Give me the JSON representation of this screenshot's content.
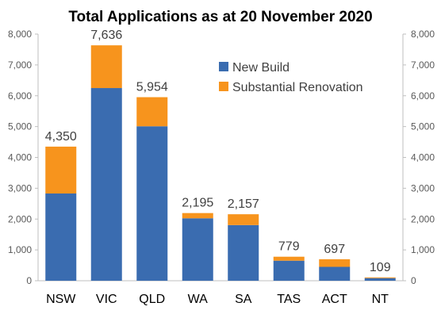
{
  "chart_data": {
    "type": "bar",
    "stacked": true,
    "title": "Total Applications as at 20 November 2020",
    "categories": [
      "NSW",
      "VIC",
      "QLD",
      "WA",
      "SA",
      "TAS",
      "ACT",
      "NT"
    ],
    "series": [
      {
        "name": "New Build",
        "color": "#3a6cb0",
        "values": [
          2830,
          6250,
          5010,
          2025,
          1805,
          650,
          450,
          85
        ]
      },
      {
        "name": "Substantial Renovation",
        "color": "#f7941d",
        "values": [
          1520,
          1386,
          944,
          170,
          352,
          129,
          247,
          24
        ]
      }
    ],
    "totals": [
      "4,350",
      "7,636",
      "5,954",
      "2,195",
      "2,157",
      "779",
      "697",
      "109"
    ],
    "ylim": [
      0,
      8000
    ],
    "yticks": [
      "0",
      "1,000",
      "2,000",
      "3,000",
      "4,000",
      "5,000",
      "6,000",
      "7,000",
      "8,000"
    ],
    "secondary_axis": true,
    "grid": false,
    "legend_position": "top-right"
  }
}
